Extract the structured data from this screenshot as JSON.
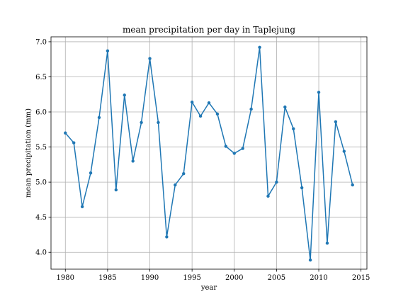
{
  "chart_data": {
    "type": "line",
    "title": "mean precipitation per day in Taplejung",
    "xlabel": "year",
    "ylabel": "mean precipitation (mm)",
    "xlim": [
      1978.3,
      2015.7
    ],
    "ylim": [
      3.76,
      7.07
    ],
    "xticks": [
      1980,
      1985,
      1990,
      1995,
      2000,
      2005,
      2010,
      2015
    ],
    "xtick_labels": [
      "1980",
      "1985",
      "1990",
      "1995",
      "2000",
      "2005",
      "2010",
      "2015"
    ],
    "yticks": [
      4.0,
      4.5,
      5.0,
      5.5,
      6.0,
      6.5,
      7.0
    ],
    "ytick_labels": [
      "4.0",
      "4.5",
      "5.0",
      "5.5",
      "6.0",
      "6.5",
      "7.0"
    ],
    "grid": true,
    "color": "#1f77b4",
    "marker": "dot",
    "x": [
      1980,
      1981,
      1982,
      1983,
      1984,
      1985,
      1986,
      1987,
      1988,
      1989,
      1990,
      1991,
      1992,
      1993,
      1994,
      1995,
      1996,
      1997,
      1998,
      1999,
      2000,
      2001,
      2002,
      2003,
      2004,
      2005,
      2006,
      2007,
      2008,
      2009,
      2010,
      2011,
      2012,
      2013,
      2014
    ],
    "y": [
      5.7,
      5.56,
      4.65,
      5.13,
      5.92,
      6.87,
      4.89,
      6.24,
      5.3,
      5.85,
      6.76,
      5.85,
      4.22,
      4.96,
      5.12,
      6.14,
      5.94,
      6.13,
      5.97,
      5.51,
      5.41,
      5.48,
      6.04,
      6.92,
      4.8,
      5.0,
      6.07,
      5.76,
      4.92,
      3.89,
      6.28,
      4.13,
      5.86,
      5.44,
      4.96
    ]
  }
}
